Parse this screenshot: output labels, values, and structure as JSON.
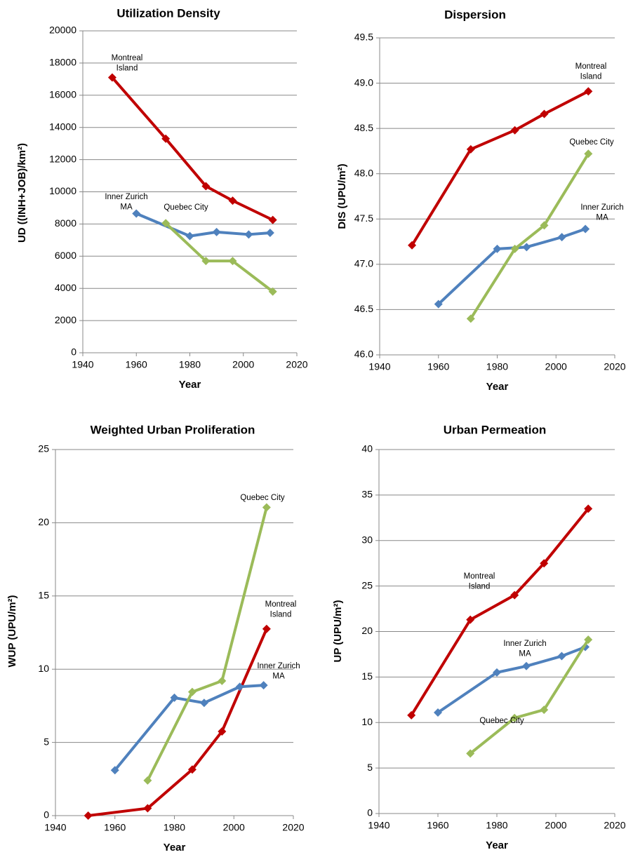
{
  "chart_data": [
    {
      "type": "line",
      "title": "Utilization Density",
      "xlabel": "Year",
      "ylabel": "UD ((INH+JOB)/km²)",
      "xlim": [
        1940,
        2020
      ],
      "xticks": [
        1940,
        1960,
        1980,
        2000,
        2020
      ],
      "ylim": [
        0,
        20000
      ],
      "yticks": [
        0,
        2000,
        4000,
        6000,
        8000,
        10000,
        12000,
        14000,
        16000,
        18000,
        20000
      ],
      "grid": true,
      "series": [
        {
          "name": "Montreal Island",
          "color": "#c00000",
          "x": [
            1951,
            1971,
            1986,
            1996,
            2011
          ],
          "values": [
            17100,
            13300,
            10350,
            9450,
            8250
          ]
        },
        {
          "name": "Inner Zurich MA",
          "color": "#4f81bd",
          "x": [
            1960,
            1980,
            1990,
            2002,
            2010
          ],
          "values": [
            8650,
            7250,
            7500,
            7350,
            7450
          ]
        },
        {
          "name": "Quebec City",
          "color": "#9bbb59",
          "x": [
            1971,
            1986,
            1996,
            2011
          ],
          "values": [
            8050,
            5700,
            5700,
            3800
          ]
        }
      ]
    },
    {
      "type": "line",
      "title": "Dispersion",
      "xlabel": "Year",
      "ylabel": "DIS (UPU/m²)",
      "xlim": [
        1940,
        2020
      ],
      "xticks": [
        1940,
        1960,
        1980,
        2000,
        2020
      ],
      "ylim": [
        46,
        49.5
      ],
      "yticks": [
        {
          "value": 46,
          "label": "46.0"
        },
        {
          "value": 46.5,
          "label": "46.5"
        },
        {
          "value": 47,
          "label": "47.0"
        },
        {
          "value": 47.5,
          "label": "47.5"
        },
        {
          "value": 48,
          "label": "48.0"
        },
        {
          "value": 48.5,
          "label": "48.5"
        },
        {
          "value": 49,
          "label": "49.0"
        },
        {
          "value": 49.5,
          "label": "49.5"
        }
      ],
      "grid": true,
      "series": [
        {
          "name": "Montreal Island",
          "color": "#c00000",
          "x": [
            1951,
            1971,
            1986,
            1996,
            2011
          ],
          "values": [
            47.21,
            48.27,
            48.48,
            48.66,
            48.91
          ]
        },
        {
          "name": "Inner Zurich MA",
          "color": "#4f81bd",
          "x": [
            1960,
            1980,
            1990,
            2002,
            2010
          ],
          "values": [
            46.56,
            47.17,
            47.19,
            47.3,
            47.39
          ]
        },
        {
          "name": "Quebec City",
          "color": "#9bbb59",
          "x": [
            1971,
            1986,
            1996,
            2011
          ],
          "values": [
            46.4,
            47.17,
            47.43,
            48.22
          ]
        }
      ]
    },
    {
      "type": "line",
      "title": "Weighted Urban Proliferation",
      "xlabel": "Year",
      "ylabel": "WUP (UPU/m²)",
      "xlim": [
        1940,
        2020
      ],
      "xticks": [
        1940,
        1960,
        1980,
        2000,
        2020
      ],
      "ylim": [
        0,
        25
      ],
      "yticks": [
        0,
        5,
        10,
        15,
        20,
        25
      ],
      "grid": true,
      "series": [
        {
          "name": "Montreal Island",
          "color": "#c00000",
          "x": [
            1951,
            1971,
            1986,
            1996,
            2011
          ],
          "values": [
            0,
            0.5,
            3.15,
            5.75,
            12.75
          ]
        },
        {
          "name": "Inner Zurich MA",
          "color": "#4f81bd",
          "x": [
            1960,
            1980,
            1990,
            2002,
            2010
          ],
          "values": [
            3.1,
            8.05,
            7.7,
            8.8,
            8.9
          ]
        },
        {
          "name": "Quebec City",
          "color": "#9bbb59",
          "x": [
            1971,
            1986,
            1996,
            2011
          ],
          "values": [
            2.4,
            8.45,
            9.2,
            21.05
          ]
        }
      ]
    },
    {
      "type": "line",
      "title": "Urban Permeation",
      "xlabel": "Year",
      "ylabel": "UP (UPU/m²)",
      "xlim": [
        1940,
        2020
      ],
      "xticks": [
        1940,
        1960,
        1980,
        2000,
        2020
      ],
      "ylim": [
        0,
        40
      ],
      "yticks": [
        0,
        5,
        10,
        15,
        20,
        25,
        30,
        35,
        40
      ],
      "grid": true,
      "series": [
        {
          "name": "Montreal Island",
          "color": "#c00000",
          "x": [
            1951,
            1971,
            1986,
            1996,
            2011
          ],
          "values": [
            10.8,
            21.3,
            24,
            27.5,
            33.5
          ]
        },
        {
          "name": "Inner Zurich MA",
          "color": "#4f81bd",
          "x": [
            1960,
            1980,
            1990,
            2002,
            2010
          ],
          "values": [
            11.1,
            15.5,
            16.2,
            17.3,
            18.3
          ]
        },
        {
          "name": "Quebec City",
          "color": "#9bbb59",
          "x": [
            1971,
            1986,
            1996,
            2011
          ],
          "values": [
            6.6,
            10.5,
            11.4,
            19.1
          ]
        }
      ]
    }
  ]
}
